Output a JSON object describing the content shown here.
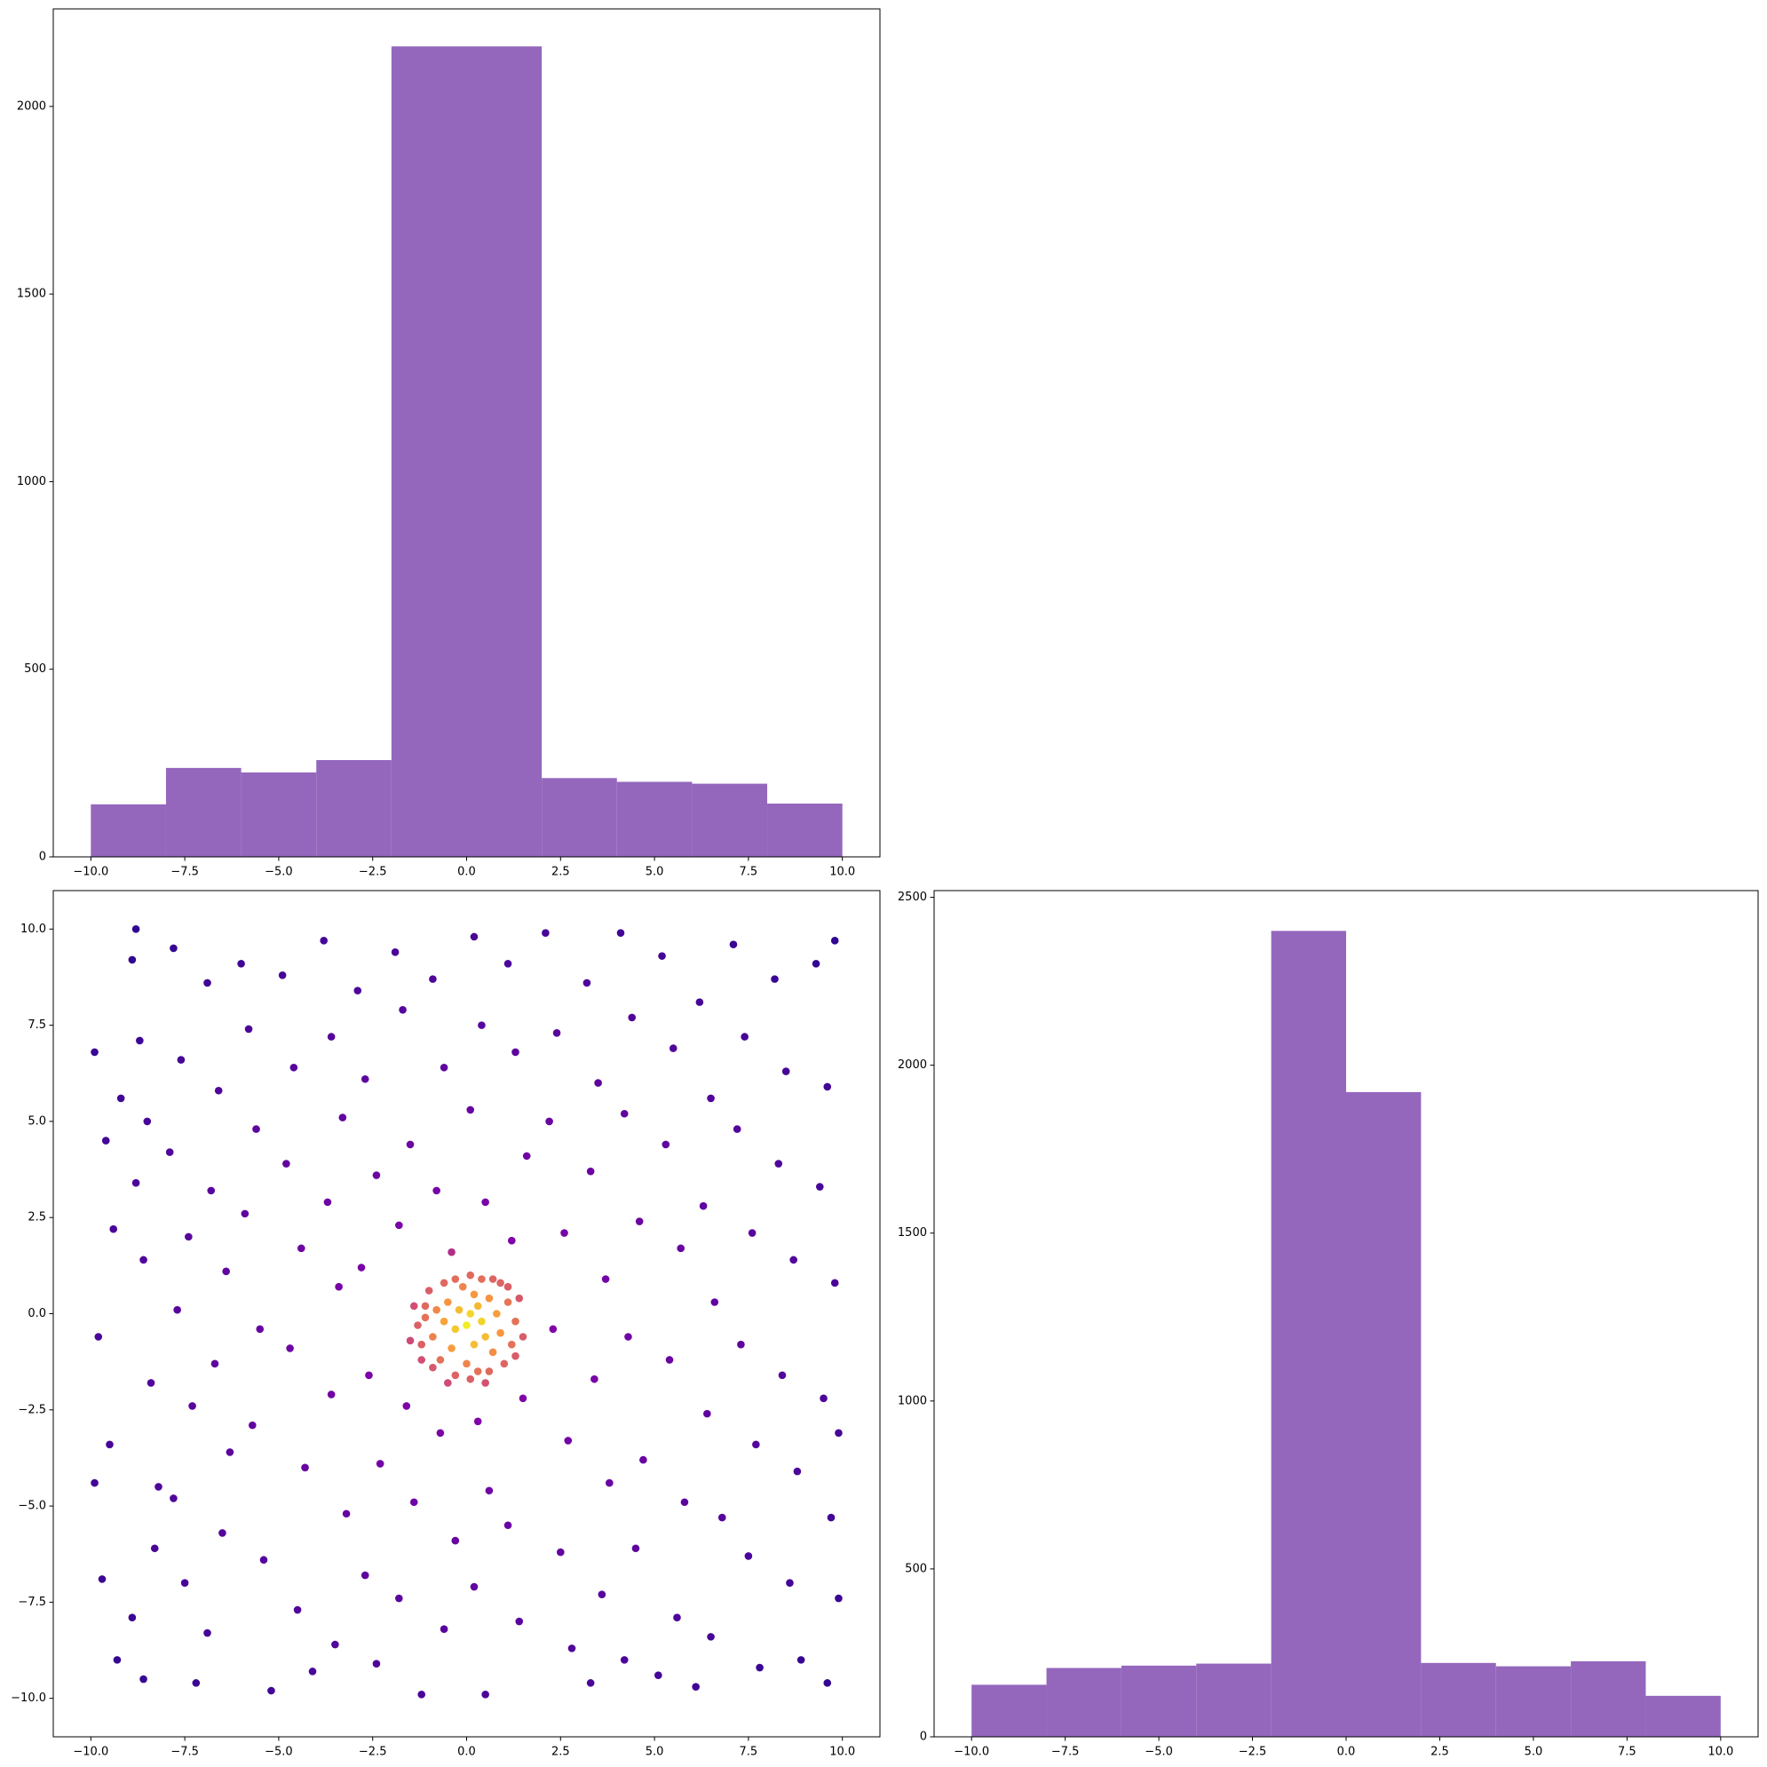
{
  "chart_data": [
    {
      "type": "histogram",
      "color": "#9467bd",
      "bins": [
        -10,
        -8,
        -6,
        -4,
        -2,
        0,
        2,
        4,
        6,
        8,
        10
      ],
      "counts": [
        140,
        237,
        225,
        258,
        2160,
        2160,
        210,
        200,
        195,
        142
      ],
      "xlim": [
        -11,
        11
      ],
      "ylim": [
        0,
        2260
      ],
      "xticks": [
        {
          "value": -10,
          "label": "−10.0"
        },
        {
          "value": -7.5,
          "label": "−7.5"
        },
        {
          "value": -5,
          "label": "−5.0"
        },
        {
          "value": -2.5,
          "label": "−2.5"
        },
        {
          "value": 0,
          "label": "0.0"
        },
        {
          "value": 2.5,
          "label": "2.5"
        },
        {
          "value": 5,
          "label": "5.0"
        },
        {
          "value": 7.5,
          "label": "7.5"
        },
        {
          "value": 10,
          "label": "10.0"
        }
      ],
      "yticks": [
        0,
        500,
        1000,
        1500,
        2000
      ]
    },
    {
      "type": "scatter",
      "colormap": "plasma",
      "x": [
        -9.9,
        -9.6,
        -9.4,
        -9.8,
        -9.5,
        -9.7,
        -9.3,
        -8.9,
        -8.7,
        -8.5,
        -8.8,
        -8.6,
        -8.4,
        -8.2,
        -8.9,
        -8.6,
        -8.8,
        -8.3,
        -7.8,
        -7.6,
        -7.9,
        -7.4,
        -7.7,
        -7.3,
        -7.8,
        -7.5,
        -7.2,
        -6.9,
        -6.6,
        -6.8,
        -6.4,
        -6.7,
        -6.3,
        -6.5,
        -6.9,
        -6.0,
        -5.8,
        -5.6,
        -5.9,
        -5.5,
        -5.7,
        -5.4,
        -5.2,
        -4.9,
        -4.6,
        -4.8,
        -4.4,
        -4.7,
        -4.3,
        -4.5,
        -4.1,
        -3.8,
        -3.6,
        -3.3,
        -3.7,
        -3.4,
        -3.6,
        -3.2,
        -3.5,
        -2.9,
        -2.7,
        -2.4,
        -2.8,
        -2.6,
        -2.3,
        -2.7,
        -2.4,
        -1.9,
        -1.7,
        -1.5,
        -1.8,
        -1.6,
        -1.4,
        -1.8,
        -1.2,
        -0.9,
        -0.6,
        -0.8,
        -0.4,
        -0.7,
        -0.3,
        -0.6,
        0.2,
        0.4,
        0.1,
        0.5,
        0.3,
        0.6,
        0.2,
        0.5,
        1.1,
        1.3,
        1.6,
        1.2,
        1.5,
        1.1,
        1.4,
        2.1,
        2.4,
        2.2,
        2.6,
        2.3,
        2.7,
        2.5,
        2.8,
        3.2,
        3.5,
        3.3,
        3.7,
        3.4,
        3.8,
        3.6,
        3.3,
        4.1,
        4.4,
        4.2,
        4.6,
        4.3,
        4.7,
        4.5,
        4.2,
        5.2,
        5.5,
        5.3,
        5.7,
        5.4,
        5.8,
        5.6,
        5.1,
        6.2,
        6.5,
        6.3,
        6.6,
        6.4,
        6.8,
        6.5,
        6.1,
        7.1,
        7.4,
        7.2,
        7.6,
        7.3,
        7.7,
        7.5,
        7.8,
        8.2,
        8.5,
        8.3,
        8.7,
        8.4,
        8.8,
        8.6,
        8.9,
        9.3,
        9.6,
        9.4,
        9.8,
        9.5,
        9.7,
        9.9,
        9.6,
        9.8,
        9.9,
        -9.9,
        -9.2,
        -1.1,
        1.1,
        -0.5,
        0.5,
        -1.5,
        1.5,
        0.1,
        -1.2,
        1.3,
        -0.3,
        0.7,
        0.1,
        -1.4,
        1.4,
        1.0,
        -0.9,
        0.6,
        -1.3,
        1.3,
        -0.3,
        0.3,
        -1.0,
        0.9,
        -1.2,
        1.2,
        0.0,
        -0.7,
        0.7,
        -1.1,
        1.1,
        -0.6,
        0.4,
        -0.9,
        0.9,
        -0.4,
        0.2,
        -0.8,
        0.8,
        -0.6,
        0.5,
        -0.1,
        0.6,
        -0.5,
        0.2,
        -0.3,
        0.4,
        0.0,
        -0.2,
        0.3,
        0.1
      ],
      "y": [
        6.8,
        4.5,
        2.2,
        -0.6,
        -3.4,
        -6.9,
        -9.0,
        9.2,
        7.1,
        5.0,
        3.4,
        1.4,
        -1.8,
        -4.5,
        -7.9,
        -9.5,
        10.0,
        -6.1,
        9.5,
        6.6,
        4.2,
        2.0,
        0.1,
        -2.4,
        -4.8,
        -7.0,
        -9.6,
        8.6,
        5.8,
        3.2,
        1.1,
        -1.3,
        -3.6,
        -5.7,
        -8.3,
        9.1,
        7.4,
        4.8,
        2.6,
        -0.4,
        -2.9,
        -6.4,
        -9.8,
        8.8,
        6.4,
        3.9,
        1.7,
        -0.9,
        -4.0,
        -7.7,
        -9.3,
        9.7,
        7.2,
        5.1,
        2.9,
        0.7,
        -2.1,
        -5.2,
        -8.6,
        8.4,
        6.1,
        3.6,
        1.2,
        -1.6,
        -3.9,
        -6.8,
        -9.1,
        9.4,
        7.9,
        4.4,
        2.3,
        -2.4,
        -4.9,
        -7.4,
        -9.9,
        8.7,
        6.4,
        3.2,
        1.6,
        -3.1,
        -5.9,
        -8.2,
        9.8,
        7.5,
        5.3,
        2.9,
        -2.8,
        -4.6,
        -7.1,
        -9.9,
        9.1,
        6.8,
        4.1,
        1.9,
        -2.2,
        -5.5,
        -8.0,
        9.9,
        7.3,
        5.0,
        2.1,
        -0.4,
        -3.3,
        -6.2,
        -8.7,
        8.6,
        6.0,
        3.7,
        0.9,
        -1.7,
        -4.4,
        -7.3,
        -9.6,
        9.9,
        7.7,
        5.2,
        2.4,
        -0.6,
        -3.8,
        -6.1,
        -9.0,
        9.3,
        6.9,
        4.4,
        1.7,
        -1.2,
        -4.9,
        -7.9,
        -9.4,
        8.1,
        5.6,
        2.8,
        0.3,
        -2.6,
        -5.3,
        -8.4,
        -9.7,
        9.6,
        7.2,
        4.8,
        2.1,
        -0.8,
        -3.4,
        -6.3,
        -9.2,
        8.7,
        6.3,
        3.9,
        1.4,
        -1.6,
        -4.1,
        -7.0,
        -9.0,
        9.1,
        5.9,
        3.3,
        0.8,
        -2.2,
        -5.3,
        -7.4,
        -9.6,
        9.7,
        -3.1,
        -4.4,
        5.6,
        -0.1,
        0.7,
        -1.8,
        -1.8,
        -0.7,
        -0.6,
        -1.7,
        -1.2,
        -1.1,
        0.9,
        0.9,
        1.0,
        0.2,
        0.4,
        -1.3,
        -1.4,
        -1.5,
        -0.3,
        -0.2,
        -1.6,
        -1.5,
        0.6,
        0.8,
        -0.8,
        -0.8,
        -1.3,
        -1.2,
        -1.0,
        0.2,
        0.3,
        0.8,
        0.9,
        -0.6,
        -0.5,
        -0.9,
        -0.8,
        0.1,
        0.0,
        -0.2,
        -0.6,
        0.7,
        0.4,
        0.3,
        0.5,
        -0.4,
        -0.2,
        -0.3,
        0.1,
        0.2,
        0.0
      ],
      "xlim": [
        -11,
        11
      ],
      "ylim": [
        -11,
        11
      ],
      "xticks": [
        {
          "value": -10,
          "label": "−10.0"
        },
        {
          "value": -7.5,
          "label": "−7.5"
        },
        {
          "value": -5,
          "label": "−5.0"
        },
        {
          "value": -2.5,
          "label": "−2.5"
        },
        {
          "value": 0,
          "label": "0.0"
        },
        {
          "value": 2.5,
          "label": "2.5"
        },
        {
          "value": 5,
          "label": "5.0"
        },
        {
          "value": 7.5,
          "label": "7.5"
        },
        {
          "value": 10,
          "label": "10.0"
        }
      ],
      "yticks": [
        {
          "value": -10,
          "label": "−10.0"
        },
        {
          "value": -7.5,
          "label": "−7.5"
        },
        {
          "value": -5,
          "label": "−5.0"
        },
        {
          "value": -2.5,
          "label": "−2.5"
        },
        {
          "value": 0,
          "label": "0.0"
        },
        {
          "value": 2.5,
          "label": "2.5"
        },
        {
          "value": 5,
          "label": "5.0"
        },
        {
          "value": 7.5,
          "label": "7.5"
        },
        {
          "value": 10,
          "label": "10.0"
        }
      ]
    },
    {
      "type": "histogram",
      "color": "#9467bd",
      "bins": [
        -10,
        -8,
        -6,
        -4,
        -2,
        0,
        2,
        4,
        6,
        8,
        10
      ],
      "counts": [
        155,
        205,
        212,
        218,
        2400,
        1920,
        220,
        210,
        225,
        122
      ],
      "xlim": [
        -11,
        11
      ],
      "ylim": [
        0,
        2520
      ],
      "xticks": [
        {
          "value": -10,
          "label": "−10.0"
        },
        {
          "value": -7.5,
          "label": "−7.5"
        },
        {
          "value": -5,
          "label": "−5.0"
        },
        {
          "value": -2.5,
          "label": "−2.5"
        },
        {
          "value": 0,
          "label": "0.0"
        },
        {
          "value": 2.5,
          "label": "2.5"
        },
        {
          "value": 5,
          "label": "5.0"
        },
        {
          "value": 7.5,
          "label": "7.5"
        },
        {
          "value": 10,
          "label": "10.0"
        }
      ],
      "yticks": [
        0,
        500,
        1000,
        1500,
        2000,
        2500
      ]
    }
  ]
}
